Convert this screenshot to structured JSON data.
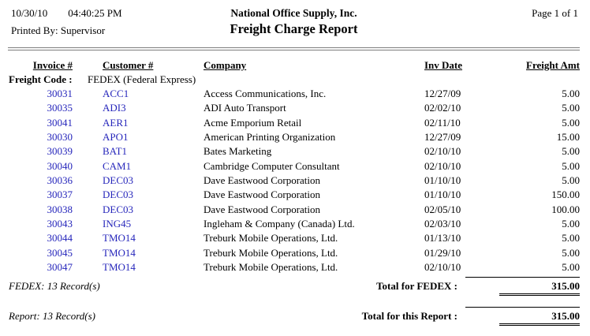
{
  "header": {
    "date": "10/30/10",
    "time": "04:40:25 PM",
    "company_name": "National Office Supply, Inc.",
    "report_title": "Freight Charge Report",
    "page_info": "Page 1 of 1",
    "printed_by": "Printed By: Supervisor"
  },
  "table": {
    "columns": [
      "Invoice #",
      "Customer #",
      "Company",
      "Inv Date",
      "Freight Amt"
    ],
    "group": {
      "label": "Freight Code :",
      "value": "FEDEX (Federal Express)"
    },
    "rows": [
      {
        "invoice": "30031",
        "customer": "ACC1",
        "company": "Access Communications, Inc.",
        "date": "12/27/09",
        "amount": "5.00"
      },
      {
        "invoice": "30035",
        "customer": "ADI3",
        "company": "ADI Auto Transport",
        "date": "02/02/10",
        "amount": "5.00"
      },
      {
        "invoice": "30041",
        "customer": "AER1",
        "company": "Acme Emporium Retail",
        "date": "02/11/10",
        "amount": "5.00"
      },
      {
        "invoice": "30030",
        "customer": "APO1",
        "company": "American Printing Organization",
        "date": "12/27/09",
        "amount": "15.00"
      },
      {
        "invoice": "30039",
        "customer": "BAT1",
        "company": "Bates Marketing",
        "date": "02/10/10",
        "amount": "5.00"
      },
      {
        "invoice": "30040",
        "customer": "CAM1",
        "company": "Cambridge Computer Consultant",
        "date": "02/10/10",
        "amount": "5.00"
      },
      {
        "invoice": "30036",
        "customer": "DEC03",
        "company": "Dave Eastwood Corporation",
        "date": "01/10/10",
        "amount": "5.00"
      },
      {
        "invoice": "30037",
        "customer": "DEC03",
        "company": "Dave Eastwood Corporation",
        "date": "01/10/10",
        "amount": "150.00"
      },
      {
        "invoice": "30038",
        "customer": "DEC03",
        "company": "Dave Eastwood Corporation",
        "date": "02/05/10",
        "amount": "100.00"
      },
      {
        "invoice": "30043",
        "customer": "ING45",
        "company": "Ingleham & Company (Canada) Ltd.",
        "date": "02/03/10",
        "amount": "5.00"
      },
      {
        "invoice": "30044",
        "customer": "TMO14",
        "company": "Treburk Mobile Operations, Ltd.",
        "date": "01/13/10",
        "amount": "5.00"
      },
      {
        "invoice": "30045",
        "customer": "TMO14",
        "company": "Treburk Mobile Operations, Ltd.",
        "date": "01/29/10",
        "amount": "5.00"
      },
      {
        "invoice": "30047",
        "customer": "TMO14",
        "company": "Treburk Mobile Operations, Ltd.",
        "date": "02/10/10",
        "amount": "5.00"
      }
    ]
  },
  "totals": {
    "group_record_count": "FEDEX: 13 Record(s)",
    "group_total_label": "Total for FEDEX :",
    "group_total_amount": "315.00",
    "report_record_count": "Report: 13 Record(s)",
    "report_total_label": "Total for this Report :",
    "report_total_amount": "315.00"
  },
  "colors": {
    "value_blue": "#2626bb",
    "rule_gray": "#7d7d7d"
  }
}
